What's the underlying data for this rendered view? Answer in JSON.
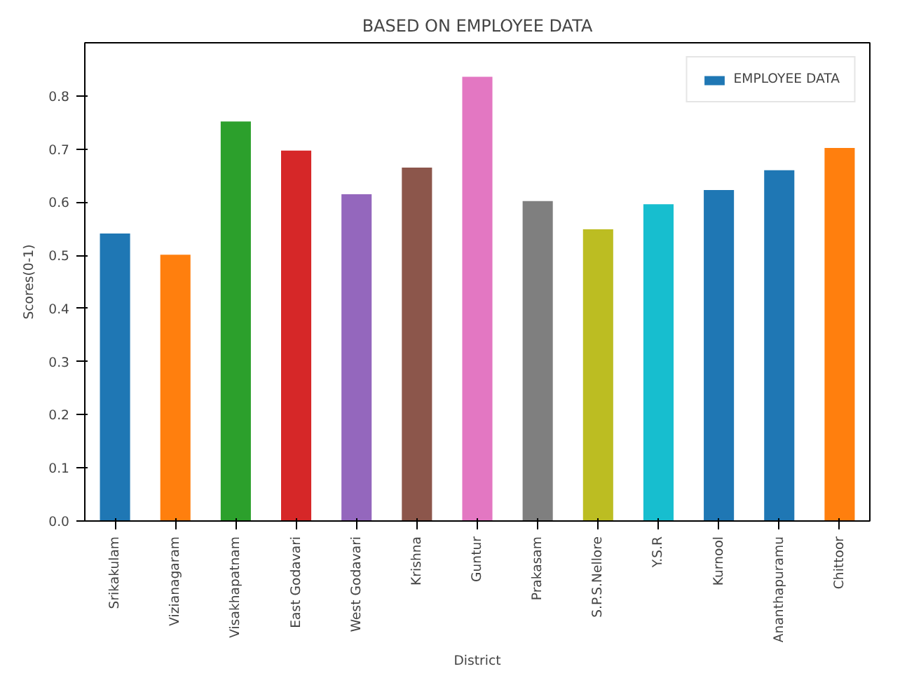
{
  "chart_data": {
    "type": "bar",
    "title": "BASED ON EMPLOYEE DATA",
    "xlabel": "District",
    "ylabel": "Scores(0-1)",
    "categories": [
      "Srikakulam",
      "Vizianagaram",
      "Visakhapatnam",
      "East Godavari",
      "West Godavari",
      "Krishna",
      "Guntur",
      "Prakasam",
      "S.P.S.Nellore",
      "Y.S.R",
      "Kurnool",
      "Ananthapuramu",
      "Chittoor"
    ],
    "series": [
      {
        "name": "EMPLOYEE DATA",
        "color": "#1f77b4",
        "colors": [
          "#1f77b4",
          "#ff7f0e",
          "#2ca02c",
          "#d62728",
          "#9467bd",
          "#8c564b",
          "#e377c2",
          "#7f7f7f",
          "#bcbd22",
          "#17becf",
          "#1f77b4",
          "#1f77b4",
          "#ff7f0e"
        ],
        "values": [
          0.541,
          0.501,
          0.752,
          0.697,
          0.615,
          0.665,
          0.836,
          0.602,
          0.549,
          0.596,
          0.623,
          0.66,
          0.702
        ]
      }
    ],
    "ylim": [
      0,
      0.9
    ],
    "yticks": [
      {
        "value": 0,
        "label": "0.0"
      },
      {
        "value": 0.1,
        "label": "0.1"
      },
      {
        "value": 0.2,
        "label": "0.2"
      },
      {
        "value": 0.3,
        "label": "0.3"
      },
      {
        "value": 0.4,
        "label": "0.4"
      },
      {
        "value": 0.5,
        "label": "0.5"
      },
      {
        "value": 0.6,
        "label": "0.6"
      },
      {
        "value": 0.7,
        "label": "0.7"
      },
      {
        "value": 0.8,
        "label": "0.8"
      }
    ],
    "grid": false,
    "legend": "top right"
  }
}
